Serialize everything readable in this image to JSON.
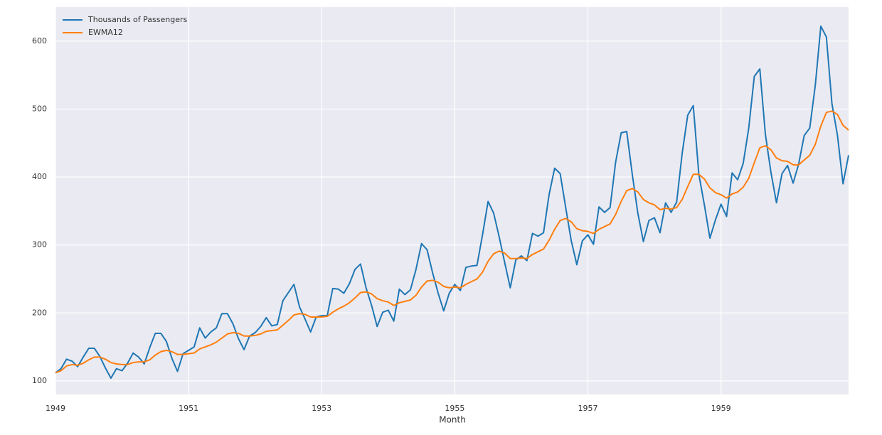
{
  "chart_data": {
    "type": "line",
    "xlabel": "Month",
    "x": [
      "1949-01",
      "1949-02",
      "1949-03",
      "1949-04",
      "1949-05",
      "1949-06",
      "1949-07",
      "1949-08",
      "1949-09",
      "1949-10",
      "1949-11",
      "1949-12",
      "1950-01",
      "1950-02",
      "1950-03",
      "1950-04",
      "1950-05",
      "1950-06",
      "1950-07",
      "1950-08",
      "1950-09",
      "1950-10",
      "1950-11",
      "1950-12",
      "1951-01",
      "1951-02",
      "1951-03",
      "1951-04",
      "1951-05",
      "1951-06",
      "1951-07",
      "1951-08",
      "1951-09",
      "1951-10",
      "1951-11",
      "1951-12",
      "1952-01",
      "1952-02",
      "1952-03",
      "1952-04",
      "1952-05",
      "1952-06",
      "1952-07",
      "1952-08",
      "1952-09",
      "1952-10",
      "1952-11",
      "1952-12",
      "1953-01",
      "1953-02",
      "1953-03",
      "1953-04",
      "1953-05",
      "1953-06",
      "1953-07",
      "1953-08",
      "1953-09",
      "1953-10",
      "1953-11",
      "1953-12",
      "1954-01",
      "1954-02",
      "1954-03",
      "1954-04",
      "1954-05",
      "1954-06",
      "1954-07",
      "1954-08",
      "1954-09",
      "1954-10",
      "1954-11",
      "1954-12",
      "1955-01",
      "1955-02",
      "1955-03",
      "1955-04",
      "1955-05",
      "1955-06",
      "1955-07",
      "1955-08",
      "1955-09",
      "1955-10",
      "1955-11",
      "1955-12",
      "1956-01",
      "1956-02",
      "1956-03",
      "1956-04",
      "1956-05",
      "1956-06",
      "1956-07",
      "1956-08",
      "1956-09",
      "1956-10",
      "1956-11",
      "1956-12",
      "1957-01",
      "1957-02",
      "1957-03",
      "1957-04",
      "1957-05",
      "1957-06",
      "1957-07",
      "1957-08",
      "1957-09",
      "1957-10",
      "1957-11",
      "1957-12",
      "1958-01",
      "1958-02",
      "1958-03",
      "1958-04",
      "1958-05",
      "1958-06",
      "1958-07",
      "1958-08",
      "1958-09",
      "1958-10",
      "1958-11",
      "1958-12",
      "1959-01",
      "1959-02",
      "1959-03",
      "1959-04",
      "1959-05",
      "1959-06",
      "1959-07",
      "1959-08",
      "1959-09",
      "1959-10",
      "1959-11",
      "1959-12",
      "1960-01",
      "1960-02",
      "1960-03",
      "1960-04",
      "1960-05",
      "1960-06",
      "1960-07",
      "1960-08",
      "1960-09",
      "1960-10",
      "1960-11",
      "1960-12"
    ],
    "series": [
      {
        "name": "Thousands of Passengers",
        "color": "#1f77b4",
        "values": [
          112,
          118,
          132,
          129,
          121,
          135,
          148,
          148,
          136,
          119,
          104,
          118,
          115,
          126,
          141,
          135,
          125,
          149,
          170,
          170,
          158,
          133,
          114,
          140,
          145,
          150,
          178,
          163,
          172,
          178,
          199,
          199,
          184,
          162,
          146,
          166,
          171,
          180,
          193,
          181,
          183,
          218,
          230,
          242,
          209,
          191,
          172,
          194,
          196,
          196,
          236,
          235,
          229,
          243,
          264,
          272,
          237,
          211,
          180,
          201,
          204,
          188,
          235,
          227,
          234,
          264,
          302,
          293,
          259,
          229,
          203,
          229,
          242,
          233,
          267,
          269,
          270,
          315,
          364,
          347,
          312,
          274,
          237,
          278,
          284,
          277,
          317,
          313,
          318,
          374,
          413,
          405,
          355,
          306,
          271,
          306,
          315,
          301,
          356,
          348,
          355,
          422,
          465,
          467,
          404,
          347,
          305,
          336,
          340,
          318,
          362,
          348,
          363,
          435,
          491,
          505,
          404,
          359,
          310,
          337,
          360,
          342,
          406,
          396,
          420,
          472,
          548,
          559,
          463,
          407,
          362,
          405,
          417,
          391,
          419,
          461,
          472,
          535,
          622,
          606,
          508,
          461,
          390,
          432
        ]
      },
      {
        "name": "EWMA12",
        "color": "#ff7f0e",
        "values": [
          112,
          115,
          122,
          124,
          123,
          126,
          131,
          135,
          135,
          132,
          127,
          125,
          124,
          124,
          127,
          128,
          128,
          131,
          138,
          143,
          145,
          143,
          139,
          139,
          140,
          141,
          147,
          150,
          153,
          157,
          163,
          169,
          171,
          170,
          166,
          166,
          167,
          169,
          173,
          174,
          175,
          182,
          189,
          197,
          199,
          198,
          194,
          194,
          194,
          195,
          201,
          206,
          210,
          215,
          222,
          230,
          231,
          228,
          221,
          218,
          216,
          211,
          215,
          217,
          219,
          226,
          238,
          247,
          248,
          245,
          239,
          237,
          238,
          237,
          242,
          246,
          250,
          260,
          276,
          287,
          291,
          288,
          280,
          280,
          281,
          280,
          286,
          290,
          294,
          307,
          323,
          336,
          339,
          334,
          324,
          321,
          320,
          317,
          323,
          327,
          331,
          345,
          364,
          380,
          383,
          378,
          367,
          362,
          359,
          352,
          354,
          353,
          355,
          367,
          386,
          404,
          404,
          397,
          384,
          377,
          374,
          369,
          375,
          378,
          385,
          398,
          421,
          443,
          446,
          440,
          428,
          424,
          423,
          418,
          418,
          425,
          432,
          448,
          475,
          495,
          497,
          492,
          476,
          469
        ]
      }
    ],
    "xlim": [
      "1949-01",
      "1960-12"
    ],
    "xticks": [
      1949,
      1951,
      1953,
      1955,
      1957,
      1959
    ],
    "ylim": [
      80,
      650
    ],
    "yticks": [
      100,
      200,
      300,
      400,
      500,
      600
    ],
    "grid": true,
    "legend": "upper left"
  }
}
